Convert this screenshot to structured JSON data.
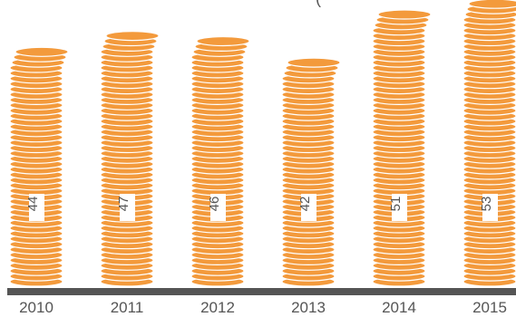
{
  "chart_data": {
    "type": "bar",
    "style": "coin-stacks",
    "categories": [
      "2010",
      "2011",
      "2012",
      "2013",
      "2014",
      "2015"
    ],
    "values": [
      44,
      47,
      46,
      42,
      51,
      53
    ],
    "title_fragment": "(",
    "xlabel": "",
    "ylabel": "",
    "grid": false,
    "legend": "none",
    "colors": {
      "coin": "#F39A3C",
      "coin_edge": "#ffffff",
      "baseline": "#555555",
      "label_box": "#ffffff",
      "label_text": "#555555",
      "tick_text": "#555555"
    }
  }
}
